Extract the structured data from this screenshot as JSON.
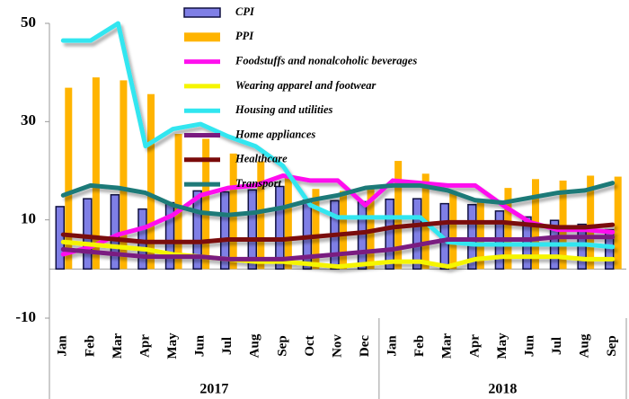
{
  "chart_data": {
    "type": "bar_line",
    "categories": [
      "Jan",
      "Feb",
      "Mar",
      "Apr",
      "May",
      "Jun",
      "Jul",
      "Aug",
      "Sep",
      "Oct",
      "Nov",
      "Dec",
      "Jan",
      "Feb",
      "Mar",
      "Apr",
      "May",
      "Jun",
      "Jul",
      "Aug",
      "Sep"
    ],
    "x_groups": [
      {
        "label": "2017",
        "count": 12
      },
      {
        "label": "2018",
        "count": 9
      }
    ],
    "ylim": [
      -10,
      50
    ],
    "yticks": [
      -10,
      10,
      30,
      50
    ],
    "series": [
      {
        "name": "CPI",
        "kind": "bar",
        "color": "#7f7fe6",
        "values": [
          12.7,
          14.3,
          15.1,
          12.2,
          13.5,
          15.9,
          15.7,
          16.1,
          16.8,
          14.0,
          13.9,
          13.7,
          14.2,
          14.3,
          13.3,
          13.1,
          11.8,
          10.6,
          9.9,
          9.1,
          8.0
        ]
      },
      {
        "name": "PPI",
        "kind": "bar",
        "color": "#ffb400",
        "values": [
          36.9,
          39.0,
          38.4,
          35.6,
          27.5,
          26.5,
          23.5,
          21.9,
          18.5,
          16.3,
          15.9,
          16.6,
          22.0,
          19.4,
          15.9,
          13.9,
          16.5,
          18.3,
          18.0,
          19.0,
          18.8
        ]
      },
      {
        "name": "Foodstuffs and nonalcoholic beverages",
        "kind": "line",
        "color": "#ff10ee",
        "values": [
          3,
          4.5,
          7,
          8.5,
          11,
          15,
          16.5,
          17,
          19,
          18,
          18,
          13,
          18,
          17.5,
          17,
          17,
          13,
          9.5,
          8,
          8,
          7.5
        ]
      },
      {
        "name": "Wearing apparel and footwear",
        "kind": "line",
        "color": "#f5f500",
        "values": [
          5.5,
          5,
          4.5,
          4,
          3,
          2.5,
          2,
          1.5,
          1.5,
          1,
          0.5,
          1,
          1.5,
          1.5,
          0.5,
          2,
          2.5,
          2.5,
          2.5,
          2,
          2
        ]
      },
      {
        "name": "Housing and utilities",
        "kind": "line",
        "color": "#30e6f0",
        "values": [
          46.5,
          46.5,
          50,
          25,
          28.5,
          29.5,
          27,
          25,
          21,
          13,
          10.5,
          10.5,
          10.5,
          10.5,
          5.5,
          5,
          5,
          5,
          5,
          5,
          4.5
        ]
      },
      {
        "name": "Home appliances",
        "kind": "line",
        "color": "#7a1a80",
        "values": [
          4,
          3.5,
          3,
          2.5,
          2.5,
          2.5,
          2,
          2,
          2,
          2.5,
          3,
          3.5,
          4,
          5,
          6,
          6,
          6,
          6,
          6.5,
          6.5,
          6.5
        ]
      },
      {
        "name": "Healthcare",
        "kind": "line",
        "color": "#7a0a0a",
        "values": [
          7,
          6.5,
          6,
          5.5,
          5.5,
          5.5,
          6,
          6,
          6,
          6.5,
          7,
          7.5,
          8.5,
          9,
          9.5,
          9.5,
          9.5,
          9,
          8.5,
          8.5,
          9
        ]
      },
      {
        "name": "Transport",
        "kind": "line",
        "color": "#1f7a78",
        "values": [
          15,
          17,
          16.5,
          15.5,
          13,
          11.5,
          11,
          11.5,
          12.5,
          14,
          15,
          16.5,
          17,
          17,
          16,
          14,
          13.5,
          14.5,
          15.5,
          16,
          17.5
        ]
      }
    ]
  }
}
